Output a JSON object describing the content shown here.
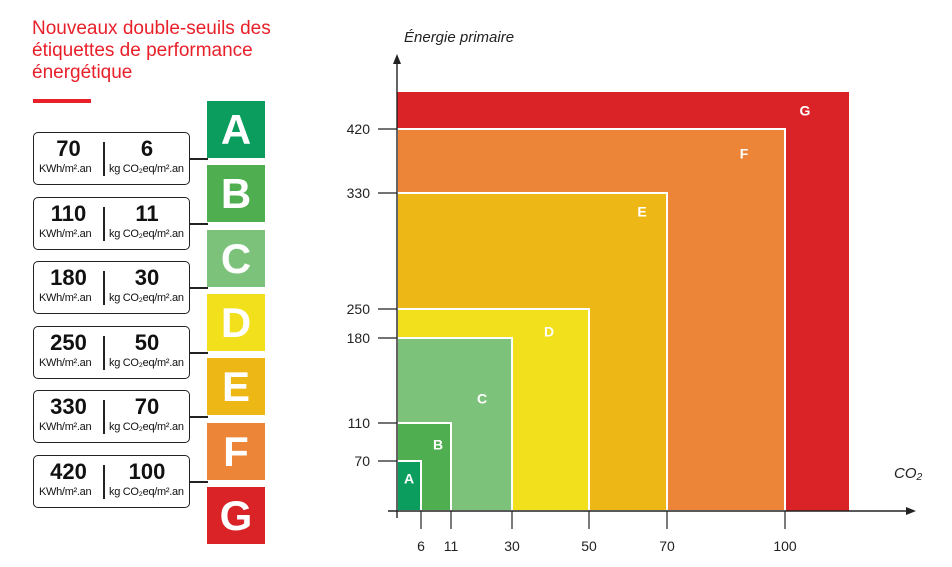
{
  "title": "Nouveaux double-seuils des étiquettes de performance énergétique",
  "colors": {
    "title_red": "#e8202a",
    "A": "#0b9d5e",
    "B": "#4fae4f",
    "C": "#7cc27a",
    "D": "#f2e01c",
    "E": "#edb715",
    "F": "#ec8538",
    "G": "#d92327"
  },
  "thresholds": [
    {
      "energy": "70",
      "energy_unit": "KWh/m².an",
      "co2": "6",
      "co2_unit": "kg CO₂eq/m².an"
    },
    {
      "energy": "110",
      "energy_unit": "KWh/m².an",
      "co2": "11",
      "co2_unit": "kg CO₂eq/m².an"
    },
    {
      "energy": "180",
      "energy_unit": "KWh/m².an",
      "co2": "30",
      "co2_unit": "kg CO₂eq/m².an"
    },
    {
      "energy": "250",
      "energy_unit": "KWh/m².an",
      "co2": "50",
      "co2_unit": "kg CO₂eq/m².an"
    },
    {
      "energy": "330",
      "energy_unit": "KWh/m².an",
      "co2": "70",
      "co2_unit": "kg CO₂eq/m².an"
    },
    {
      "energy": "420",
      "energy_unit": "KWh/m².an",
      "co2": "100",
      "co2_unit": "kg CO₂eq/m².an"
    }
  ],
  "labels": [
    "A",
    "B",
    "C",
    "D",
    "E",
    "F",
    "G"
  ],
  "chart_data": {
    "type": "area",
    "ylabel": "Énergie primaire",
    "xlabel": "CO₂",
    "x_ticks": [
      6,
      11,
      30,
      50,
      70,
      100
    ],
    "y_ticks": [
      70,
      110,
      180,
      250,
      330,
      420
    ],
    "classes": [
      {
        "name": "G",
        "co2_max": null,
        "energy_max": null
      },
      {
        "name": "F",
        "co2_max": 100,
        "energy_max": 420
      },
      {
        "name": "E",
        "co2_max": 70,
        "energy_max": 330
      },
      {
        "name": "D",
        "co2_max": 50,
        "energy_max": 250
      },
      {
        "name": "C",
        "co2_max": 30,
        "energy_max": 180
      },
      {
        "name": "B",
        "co2_max": 11,
        "energy_max": 110
      },
      {
        "name": "A",
        "co2_max": 6,
        "energy_max": 70
      }
    ]
  }
}
